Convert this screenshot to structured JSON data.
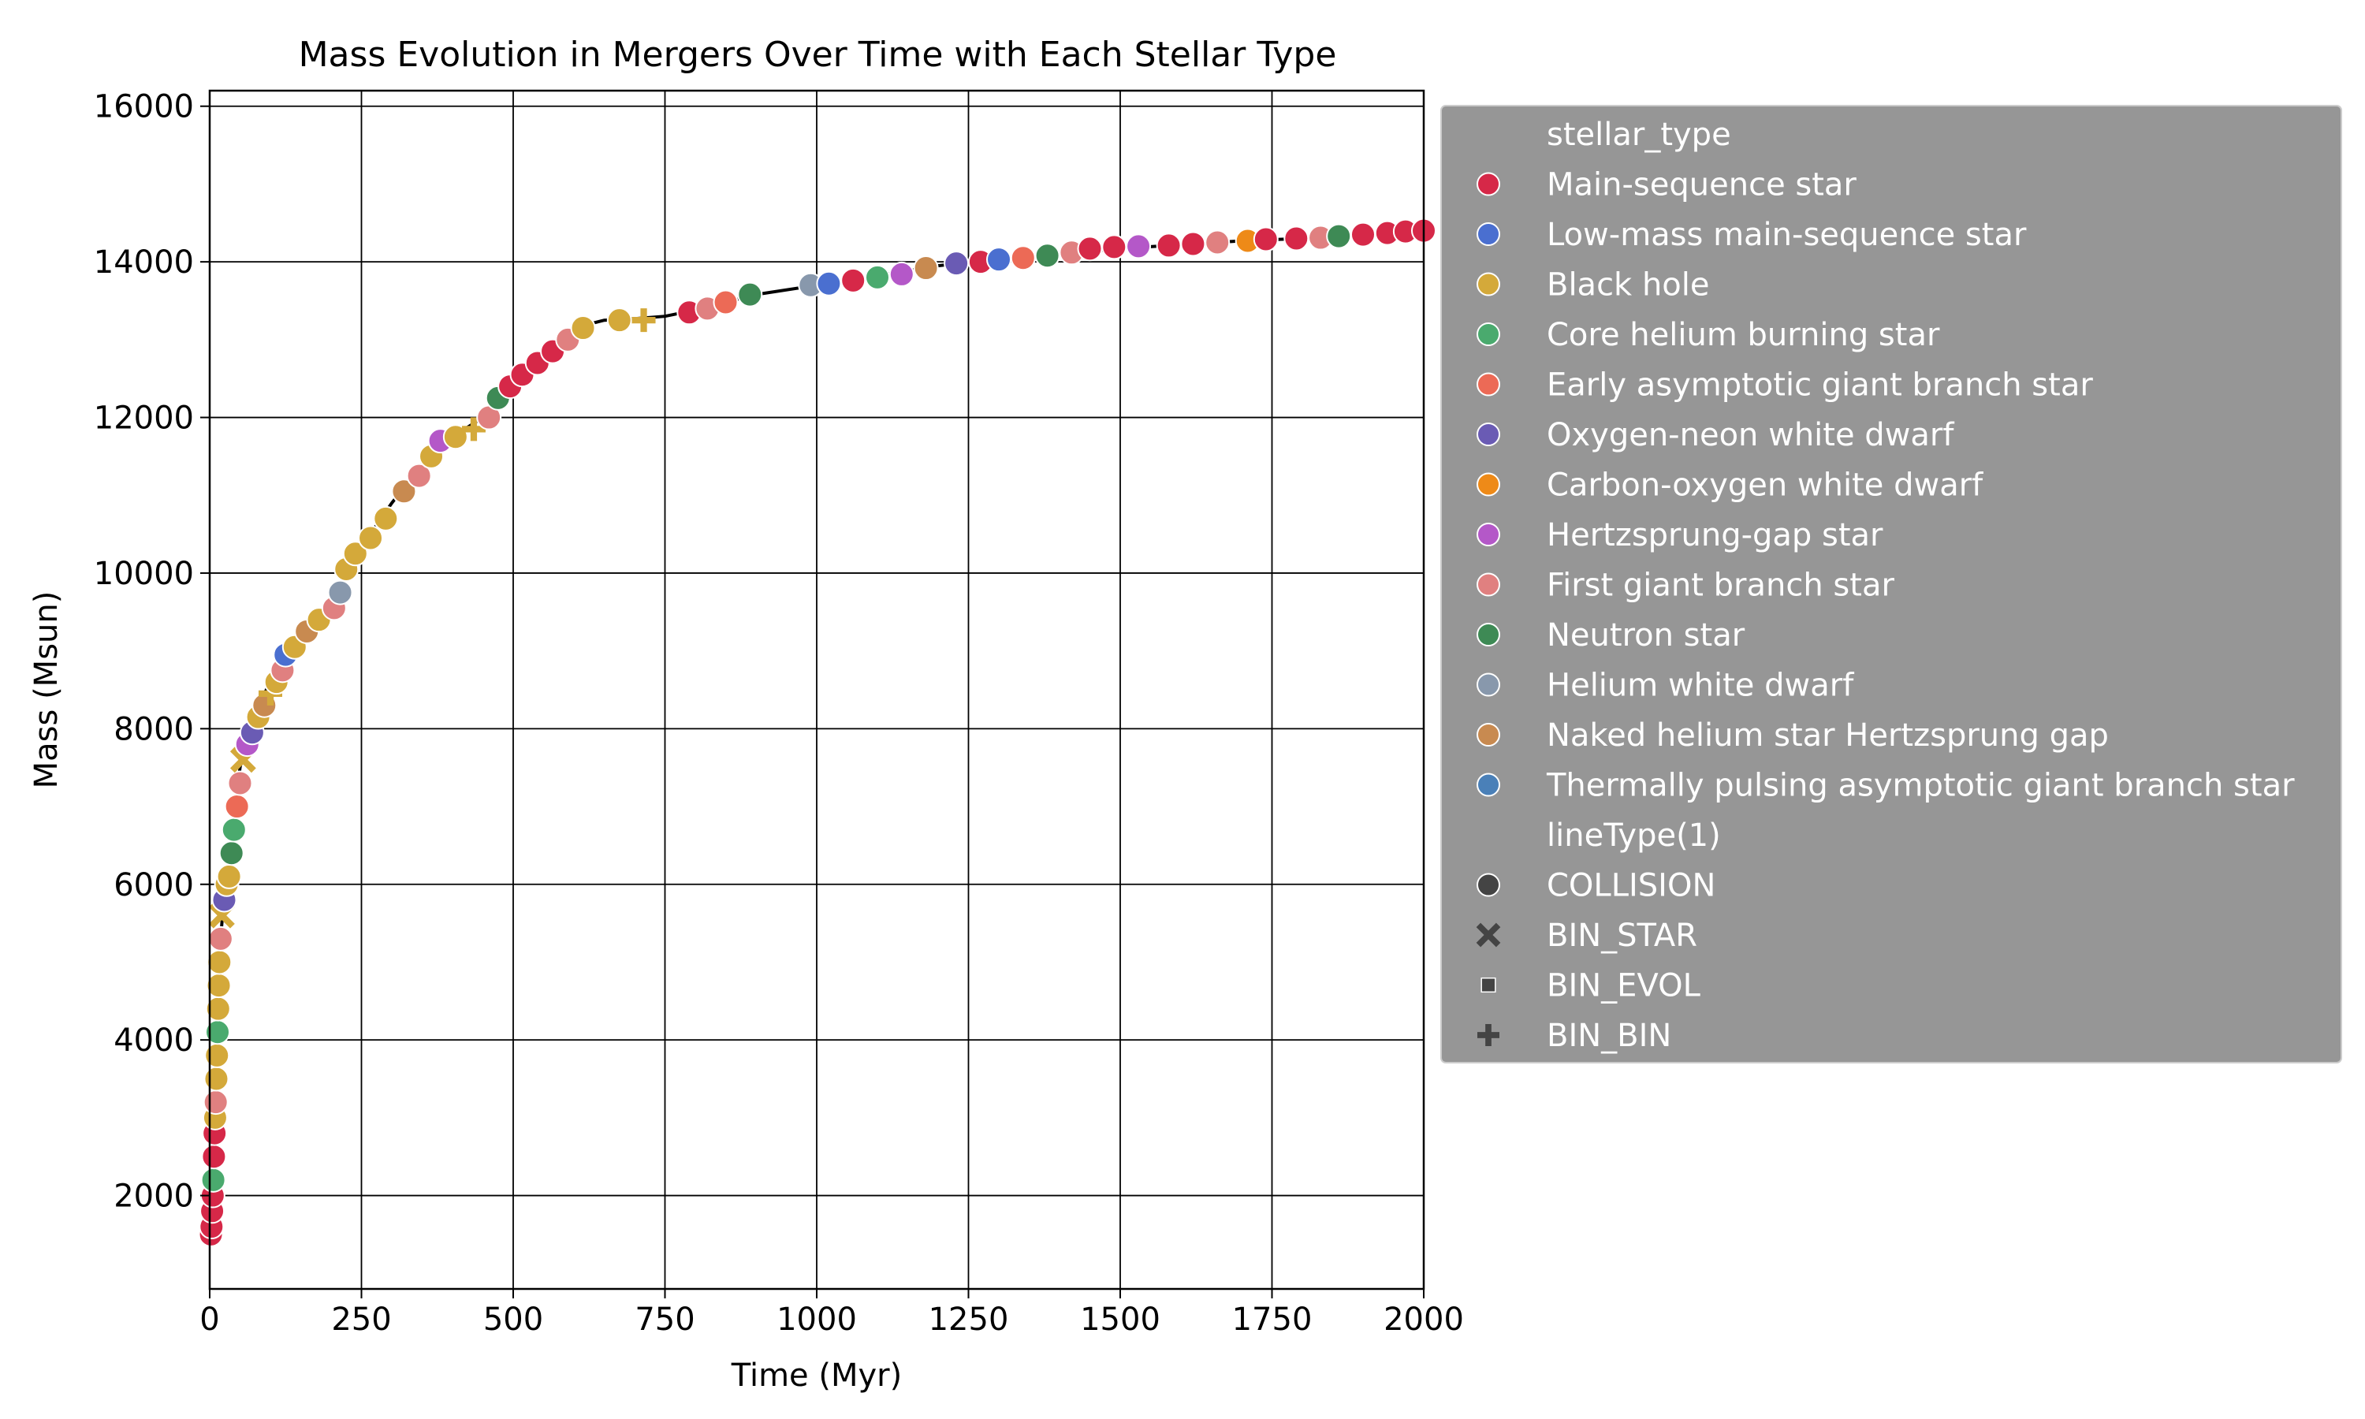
{
  "chart_data": {
    "type": "scatter",
    "title": "Mass Evolution in Mergers Over Time with Each Stellar Type",
    "xlabel": "Time (Myr)",
    "ylabel": "Mass (Msun)",
    "xlim": [
      0,
      2000
    ],
    "ylim": [
      800,
      16200
    ],
    "xticks": [
      0,
      250,
      500,
      750,
      1000,
      1250,
      1500,
      1750,
      2000
    ],
    "yticks": [
      2000,
      4000,
      6000,
      8000,
      10000,
      12000,
      14000,
      16000
    ],
    "grid": true,
    "legend_position": "outside-right",
    "legend": {
      "hue_title": "stellar_type",
      "style_title": "lineType(1)",
      "stellar_types": [
        {
          "name": "Main-sequence star",
          "color": "#d62848"
        },
        {
          "name": "Low-mass main-sequence star",
          "color": "#4a6fd0"
        },
        {
          "name": "Black hole",
          "color": "#d4a93a"
        },
        {
          "name": "Core helium burning star",
          "color": "#4aaa6e"
        },
        {
          "name": "Early asymptotic giant branch star",
          "color": "#ec6a56"
        },
        {
          "name": "Oxygen-neon white dwarf",
          "color": "#6a5bb4"
        },
        {
          "name": "Carbon-oxygen white dwarf",
          "color": "#ee8a18"
        },
        {
          "name": "Hertzsprung-gap star",
          "color": "#b458c8"
        },
        {
          "name": "First giant branch star",
          "color": "#e08080"
        },
        {
          "name": "Neutron star",
          "color": "#3e8a55"
        },
        {
          "name": "Helium white dwarf",
          "color": "#8898ac"
        },
        {
          "name": "Naked helium star Hertzsprung gap",
          "color": "#c88a50"
        },
        {
          "name": "Thermally pulsing asymptotic giant branch star",
          "color": "#4a80b8"
        }
      ],
      "line_types": [
        {
          "name": "COLLISION",
          "marker": "circle"
        },
        {
          "name": "BIN_STAR",
          "marker": "x"
        },
        {
          "name": "BIN_EVOL",
          "marker": "square"
        },
        {
          "name": "BIN_BIN",
          "marker": "plus"
        }
      ]
    },
    "trend_line": {
      "x": [
        0,
        3,
        8,
        15,
        25,
        35,
        50,
        60,
        80,
        100,
        130,
        160,
        200,
        225,
        260,
        300,
        350,
        400,
        450,
        500,
        550,
        600,
        650,
        700,
        750,
        800,
        900,
        1000,
        1100,
        1200,
        1300,
        1400,
        1500,
        1600,
        1700,
        1800,
        1900,
        2000
      ],
      "y": [
        1500,
        2200,
        3500,
        5000,
        6000,
        6600,
        7500,
        7900,
        8300,
        8600,
        8950,
        9250,
        9550,
        10050,
        10450,
        10900,
        11400,
        11750,
        12000,
        12450,
        12800,
        13150,
        13250,
        13270,
        13300,
        13380,
        13580,
        13700,
        13820,
        13950,
        14040,
        14100,
        14170,
        14220,
        14270,
        14300,
        14350,
        14400
      ]
    },
    "points": [
      {
        "x": 2,
        "y": 1500,
        "type": 0,
        "marker": "circle"
      },
      {
        "x": 3,
        "y": 1600,
        "type": 0,
        "marker": "circle"
      },
      {
        "x": 4,
        "y": 1800,
        "type": 0,
        "marker": "circle"
      },
      {
        "x": 5,
        "y": 2000,
        "type": 0,
        "marker": "circle"
      },
      {
        "x": 6,
        "y": 2200,
        "type": 3,
        "marker": "circle"
      },
      {
        "x": 7,
        "y": 2500,
        "type": 0,
        "marker": "circle"
      },
      {
        "x": 8,
        "y": 2800,
        "type": 0,
        "marker": "circle"
      },
      {
        "x": 9,
        "y": 3000,
        "type": 2,
        "marker": "circle"
      },
      {
        "x": 10,
        "y": 3200,
        "type": 8,
        "marker": "circle"
      },
      {
        "x": 11,
        "y": 3500,
        "type": 2,
        "marker": "circle"
      },
      {
        "x": 12,
        "y": 3800,
        "type": 2,
        "marker": "circle"
      },
      {
        "x": 13,
        "y": 4100,
        "type": 3,
        "marker": "circle"
      },
      {
        "x": 14,
        "y": 4400,
        "type": 2,
        "marker": "circle"
      },
      {
        "x": 15,
        "y": 4700,
        "type": 2,
        "marker": "circle"
      },
      {
        "x": 16,
        "y": 5000,
        "type": 2,
        "marker": "circle"
      },
      {
        "x": 18,
        "y": 5300,
        "type": 8,
        "marker": "circle"
      },
      {
        "x": 20,
        "y": 5600,
        "type": 2,
        "marker": "x"
      },
      {
        "x": 24,
        "y": 5800,
        "type": 5,
        "marker": "circle"
      },
      {
        "x": 28,
        "y": 6000,
        "type": 2,
        "marker": "circle"
      },
      {
        "x": 32,
        "y": 6100,
        "type": 2,
        "marker": "circle"
      },
      {
        "x": 36,
        "y": 6400,
        "type": 9,
        "marker": "circle"
      },
      {
        "x": 40,
        "y": 6700,
        "type": 3,
        "marker": "circle"
      },
      {
        "x": 45,
        "y": 7000,
        "type": 4,
        "marker": "circle"
      },
      {
        "x": 50,
        "y": 7300,
        "type": 8,
        "marker": "circle"
      },
      {
        "x": 55,
        "y": 7600,
        "type": 2,
        "marker": "x"
      },
      {
        "x": 62,
        "y": 7800,
        "type": 7,
        "marker": "circle"
      },
      {
        "x": 70,
        "y": 7950,
        "type": 5,
        "marker": "circle"
      },
      {
        "x": 80,
        "y": 8150,
        "type": 2,
        "marker": "circle"
      },
      {
        "x": 90,
        "y": 8300,
        "type": 11,
        "marker": "circle"
      },
      {
        "x": 100,
        "y": 8450,
        "type": 2,
        "marker": "plus"
      },
      {
        "x": 110,
        "y": 8600,
        "type": 2,
        "marker": "circle"
      },
      {
        "x": 120,
        "y": 8750,
        "type": 8,
        "marker": "circle"
      },
      {
        "x": 125,
        "y": 8950,
        "type": 1,
        "marker": "circle"
      },
      {
        "x": 140,
        "y": 9050,
        "type": 2,
        "marker": "circle"
      },
      {
        "x": 160,
        "y": 9250,
        "type": 11,
        "marker": "circle"
      },
      {
        "x": 180,
        "y": 9400,
        "type": 2,
        "marker": "circle"
      },
      {
        "x": 205,
        "y": 9550,
        "type": 8,
        "marker": "circle"
      },
      {
        "x": 215,
        "y": 9750,
        "type": 10,
        "marker": "circle"
      },
      {
        "x": 225,
        "y": 10050,
        "type": 2,
        "marker": "circle"
      },
      {
        "x": 240,
        "y": 10250,
        "type": 2,
        "marker": "circle"
      },
      {
        "x": 265,
        "y": 10450,
        "type": 2,
        "marker": "circle"
      },
      {
        "x": 290,
        "y": 10700,
        "type": 2,
        "marker": "circle"
      },
      {
        "x": 320,
        "y": 11050,
        "type": 11,
        "marker": "circle"
      },
      {
        "x": 345,
        "y": 11250,
        "type": 8,
        "marker": "circle"
      },
      {
        "x": 365,
        "y": 11500,
        "type": 2,
        "marker": "circle"
      },
      {
        "x": 380,
        "y": 11700,
        "type": 7,
        "marker": "circle"
      },
      {
        "x": 405,
        "y": 11750,
        "type": 2,
        "marker": "circle"
      },
      {
        "x": 435,
        "y": 11850,
        "type": 2,
        "marker": "plus"
      },
      {
        "x": 460,
        "y": 12000,
        "type": 8,
        "marker": "circle"
      },
      {
        "x": 475,
        "y": 12250,
        "type": 9,
        "marker": "circle"
      },
      {
        "x": 495,
        "y": 12400,
        "type": 0,
        "marker": "circle"
      },
      {
        "x": 515,
        "y": 12550,
        "type": 0,
        "marker": "circle"
      },
      {
        "x": 540,
        "y": 12700,
        "type": 0,
        "marker": "circle"
      },
      {
        "x": 565,
        "y": 12850,
        "type": 0,
        "marker": "circle"
      },
      {
        "x": 590,
        "y": 13000,
        "type": 8,
        "marker": "circle"
      },
      {
        "x": 615,
        "y": 13150,
        "type": 2,
        "marker": "circle"
      },
      {
        "x": 675,
        "y": 13250,
        "type": 2,
        "marker": "circle"
      },
      {
        "x": 715,
        "y": 13250,
        "type": 2,
        "marker": "plus"
      },
      {
        "x": 790,
        "y": 13350,
        "type": 0,
        "marker": "circle"
      },
      {
        "x": 820,
        "y": 13400,
        "type": 8,
        "marker": "circle"
      },
      {
        "x": 850,
        "y": 13480,
        "type": 4,
        "marker": "circle"
      },
      {
        "x": 890,
        "y": 13580,
        "type": 9,
        "marker": "circle"
      },
      {
        "x": 990,
        "y": 13700,
        "type": 10,
        "marker": "circle"
      },
      {
        "x": 1020,
        "y": 13720,
        "type": 1,
        "marker": "circle"
      },
      {
        "x": 1060,
        "y": 13760,
        "type": 0,
        "marker": "circle"
      },
      {
        "x": 1100,
        "y": 13800,
        "type": 3,
        "marker": "circle"
      },
      {
        "x": 1140,
        "y": 13840,
        "type": 7,
        "marker": "circle"
      },
      {
        "x": 1180,
        "y": 13920,
        "type": 11,
        "marker": "circle"
      },
      {
        "x": 1230,
        "y": 13980,
        "type": 5,
        "marker": "circle"
      },
      {
        "x": 1270,
        "y": 14000,
        "type": 0,
        "marker": "circle"
      },
      {
        "x": 1300,
        "y": 14030,
        "type": 1,
        "marker": "circle"
      },
      {
        "x": 1340,
        "y": 14050,
        "type": 4,
        "marker": "circle"
      },
      {
        "x": 1380,
        "y": 14080,
        "type": 9,
        "marker": "circle"
      },
      {
        "x": 1420,
        "y": 14120,
        "type": 8,
        "marker": "circle"
      },
      {
        "x": 1450,
        "y": 14170,
        "type": 0,
        "marker": "circle"
      },
      {
        "x": 1490,
        "y": 14190,
        "type": 0,
        "marker": "circle"
      },
      {
        "x": 1530,
        "y": 14200,
        "type": 7,
        "marker": "circle"
      },
      {
        "x": 1580,
        "y": 14210,
        "type": 0,
        "marker": "circle"
      },
      {
        "x": 1620,
        "y": 14230,
        "type": 0,
        "marker": "circle"
      },
      {
        "x": 1660,
        "y": 14250,
        "type": 8,
        "marker": "circle"
      },
      {
        "x": 1710,
        "y": 14270,
        "type": 6,
        "marker": "circle"
      },
      {
        "x": 1740,
        "y": 14290,
        "type": 0,
        "marker": "circle"
      },
      {
        "x": 1790,
        "y": 14300,
        "type": 0,
        "marker": "circle"
      },
      {
        "x": 1830,
        "y": 14310,
        "type": 8,
        "marker": "circle"
      },
      {
        "x": 1860,
        "y": 14330,
        "type": 9,
        "marker": "circle"
      },
      {
        "x": 1900,
        "y": 14350,
        "type": 0,
        "marker": "circle"
      },
      {
        "x": 1940,
        "y": 14370,
        "type": 0,
        "marker": "circle"
      },
      {
        "x": 1970,
        "y": 14390,
        "type": 0,
        "marker": "circle"
      },
      {
        "x": 2000,
        "y": 14400,
        "type": 0,
        "marker": "circle"
      }
    ]
  }
}
